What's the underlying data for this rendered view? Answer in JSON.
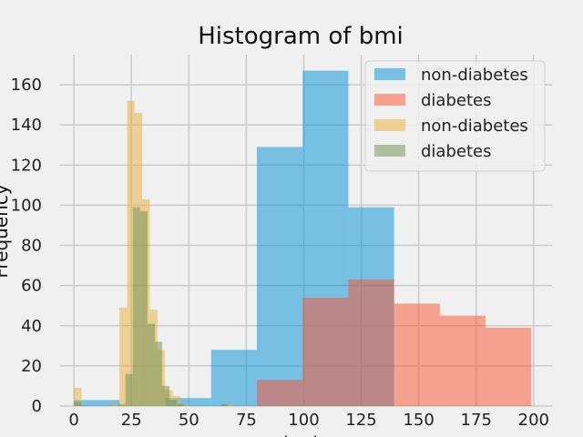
{
  "chart_data": {
    "type": "histogram",
    "title": "Histogram of bmi",
    "xlabel": "bmi",
    "ylabel": "Frequency",
    "xlim": [
      -6,
      208
    ],
    "ylim": [
      0,
      175
    ],
    "xticks": [
      0,
      25,
      50,
      75,
      100,
      125,
      150,
      175,
      200
    ],
    "yticks": [
      0,
      20,
      40,
      60,
      80,
      100,
      120,
      140,
      160
    ],
    "grid": true,
    "legend_position": "top-right",
    "series": [
      {
        "name": "non-diabetes",
        "color": "#008fd5",
        "opacity": 0.5,
        "bin_edges": [
          0,
          19.9,
          39.8,
          59.7,
          79.6,
          99.5,
          119.4,
          139.3,
          159.2,
          179.1,
          199
        ],
        "counts": [
          3,
          0,
          4,
          28,
          129,
          167,
          99,
          0,
          0,
          0
        ]
      },
      {
        "name": "diabetes",
        "color": "#fc4f30",
        "opacity": 0.5,
        "bin_edges": [
          0,
          19.9,
          39.8,
          59.7,
          79.6,
          99.5,
          119.4,
          139.3,
          159.2,
          179.1,
          199
        ],
        "counts": [
          0,
          0,
          0,
          0,
          13,
          54,
          63,
          51,
          45,
          39
        ]
      },
      {
        "name": "non-diabetes",
        "color": "#e5ae38",
        "opacity": 0.5,
        "bin_edges": [
          0,
          3.3,
          6.6,
          9.9,
          13.2,
          16.5,
          19.8,
          23.1,
          26.4,
          29.7,
          33.0,
          36.3,
          39.6,
          42.9,
          46.2,
          49.5,
          52.8,
          56.1,
          59.4,
          62.7,
          66.0,
          69.3
        ],
        "counts": [
          9,
          0,
          0,
          0,
          0,
          1,
          49,
          152,
          146,
          103,
          48,
          28,
          8,
          5,
          1,
          0,
          0,
          0,
          0,
          0,
          1
        ]
      },
      {
        "name": "diabetes",
        "color": "#6d904f",
        "opacity": 0.5,
        "bin_edges": [
          0,
          3.2,
          6.4,
          9.6,
          12.8,
          16.0,
          19.2,
          22.4,
          25.6,
          28.8,
          32.0,
          35.2,
          38.4,
          41.6,
          44.8,
          48.0,
          51.2,
          54.4,
          57.6,
          60.8,
          64.0,
          67.1
        ],
        "counts": [
          2,
          0,
          0,
          0,
          0,
          0,
          1,
          16,
          99,
          97,
          41,
          32,
          10,
          3,
          1,
          0,
          0,
          0,
          0,
          0,
          1
        ]
      }
    ]
  }
}
